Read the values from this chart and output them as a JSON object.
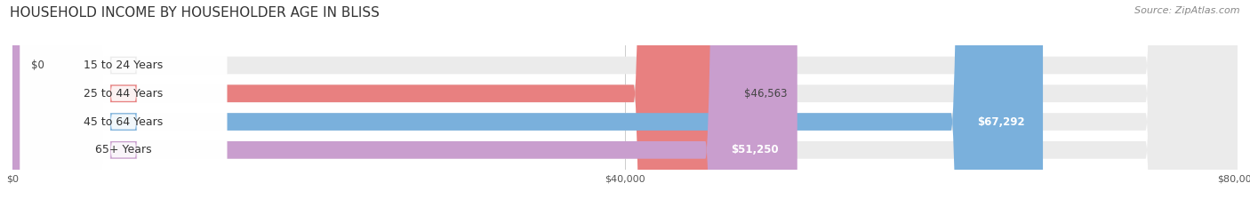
{
  "title": "HOUSEHOLD INCOME BY HOUSEHOLDER AGE IN BLISS",
  "source": "Source: ZipAtlas.com",
  "categories": [
    "15 to 24 Years",
    "25 to 44 Years",
    "45 to 64 Years",
    "65+ Years"
  ],
  "values": [
    0,
    46563,
    67292,
    51250
  ],
  "bar_colors": [
    "#f5c89a",
    "#e88080",
    "#7ab0dc",
    "#c99ece"
  ],
  "label_colors": [
    "#444444",
    "#444444",
    "#ffffff",
    "#ffffff"
  ],
  "value_labels": [
    "$0",
    "$46,563",
    "$67,292",
    "$51,250"
  ],
  "value_inside": [
    false,
    false,
    true,
    true
  ],
  "xlim": [
    0,
    80000
  ],
  "xticks": [
    0,
    40000,
    80000
  ],
  "xticklabels": [
    "$0",
    "$40,000",
    "$80,000"
  ],
  "title_fontsize": 11,
  "source_fontsize": 8,
  "label_fontsize": 9,
  "value_fontsize": 8.5,
  "bar_height": 0.62,
  "fig_bg": "#ffffff",
  "bar_bg_color": "#ebebeb"
}
